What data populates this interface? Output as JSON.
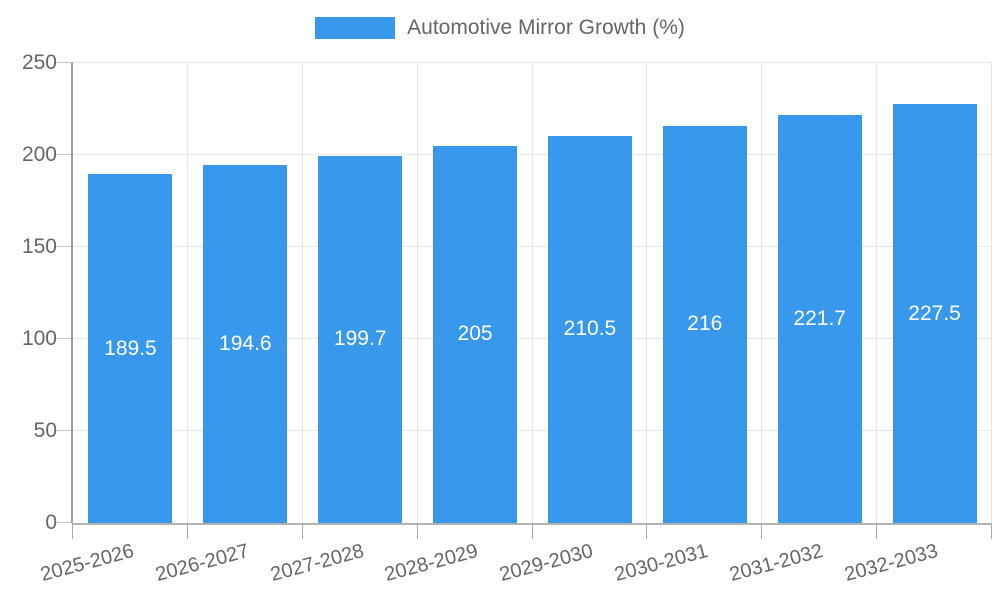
{
  "chart_data": {
    "type": "bar",
    "series_name": "Automotive Mirror Growth (%)",
    "categories": [
      "2025-2026",
      "2026-2027",
      "2027-2028",
      "2028-2029",
      "2029-2030",
      "2030-2031",
      "2031-2032",
      "2032-2033"
    ],
    "values": [
      189.5,
      194.6,
      199.7,
      205,
      210.5,
      216,
      221.7,
      227.5
    ],
    "bar_labels": [
      "189.5",
      "194.6",
      "199.7",
      "205",
      "210.5",
      "216",
      "221.7",
      "227.5"
    ],
    "y_ticks": [
      0,
      50,
      100,
      150,
      200,
      250
    ],
    "ylim": [
      0,
      250
    ],
    "xlabel": "",
    "ylabel": "",
    "grid": true,
    "legend_position": "top",
    "colors": {
      "bar": "#3898ec",
      "value_label": "#ffffff",
      "axis_text": "#666666",
      "grid": "#e6e6e6",
      "axis_line": "#9e9e9e",
      "axis_line_x": "#b2b2b2",
      "tick": "#c2c2c2",
      "tick_x": "#ababab",
      "background": "#ffffff"
    }
  }
}
